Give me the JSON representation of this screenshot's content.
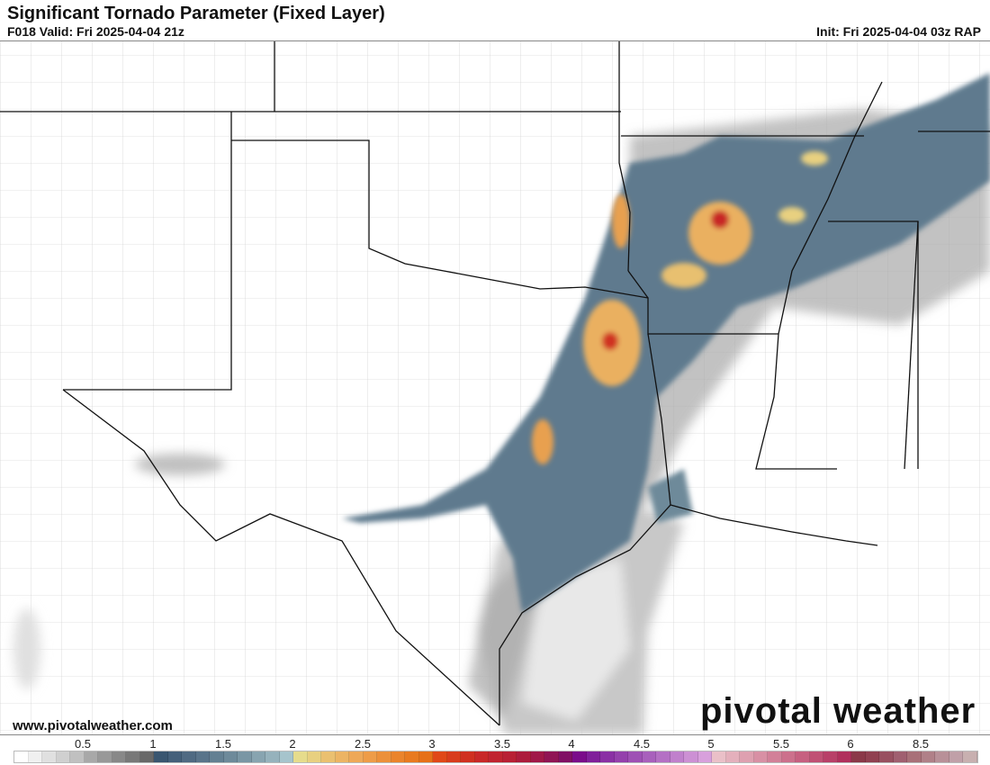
{
  "header": {
    "title": "Significant Tornado Parameter (Fixed Layer)",
    "valid": "F018 Valid: Fri 2025-04-04 21z",
    "init": "Init: Fri 2025-04-04 03z RAP"
  },
  "footer": {
    "url": "www.pivotalweather.com",
    "logo": "pivotal weather"
  },
  "colorbar": {
    "ticks": [
      "0.5",
      "1",
      "1.5",
      "2",
      "2.5",
      "3",
      "3.5",
      "4",
      "4.5",
      "5",
      "5.5",
      "6",
      "8.5"
    ],
    "colors": [
      "#ffffff",
      "#f0f0f0",
      "#e0e0e0",
      "#d0d0d0",
      "#c0c0c0",
      "#a8a8a8",
      "#989898",
      "#888888",
      "#787878",
      "#686868",
      "#3a5670",
      "#45607a",
      "#506a82",
      "#5a748a",
      "#648092",
      "#6e8a9a",
      "#7a96a4",
      "#88a4b0",
      "#96b2bc",
      "#a6c4cc",
      "#e6dc8c",
      "#e8d080",
      "#eac070",
      "#ecb464",
      "#eea858",
      "#ee9c48",
      "#ec903a",
      "#ea842c",
      "#e87a20",
      "#e67018",
      "#e04818",
      "#d83c1c",
      "#d03020",
      "#c82828",
      "#c02430",
      "#b82034",
      "#ac1c3c",
      "#a01848",
      "#901454",
      "#801064",
      "#7a0c8a",
      "#80209a",
      "#8a30a4",
      "#9440ac",
      "#9e50b4",
      "#a860bc",
      "#b470c4",
      "#c080cc",
      "#cc90d4",
      "#d8a0dc",
      "#eac0c8",
      "#e4b0bc",
      "#dea0b0",
      "#d890a4",
      "#d28098",
      "#cc708c",
      "#c66080",
      "#c05074",
      "#b84068",
      "#b0305c",
      "#8a3848",
      "#904050",
      "#985060",
      "#a06070",
      "#a87078",
      "#b08088",
      "#b89098",
      "#c0a0a8",
      "#c8b0b0"
    ]
  }
}
